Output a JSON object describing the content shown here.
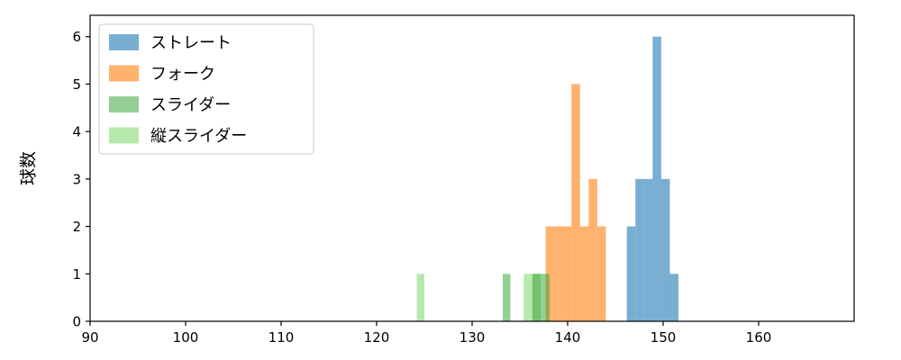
{
  "chart_data": {
    "type": "histogram",
    "title": "",
    "xlabel": "",
    "ylabel": "球数",
    "xlim": [
      90,
      170
    ],
    "ylim": [
      0,
      6.45
    ],
    "xticks": [
      90,
      100,
      110,
      120,
      130,
      140,
      150,
      160
    ],
    "yticks": [
      0,
      1,
      2,
      3,
      4,
      5,
      6
    ],
    "grid": false,
    "axis_color": "#000000",
    "legend": {
      "position": "upper-left",
      "background": "#ffffff",
      "border_color": "#c9c9c9"
    },
    "draw_order": [
      0,
      1,
      3,
      2
    ],
    "series": [
      {
        "name": "ストレート",
        "color": "#1f77b4",
        "alpha": 0.6,
        "bars": [
          [
            146.2,
            147.1,
            2
          ],
          [
            147.1,
            148.0,
            3
          ],
          [
            148.0,
            148.9,
            3
          ],
          [
            148.9,
            149.8,
            6
          ],
          [
            149.8,
            150.7,
            3
          ],
          [
            150.7,
            151.6,
            1
          ]
        ]
      },
      {
        "name": "フォーク",
        "color": "#ff7f0e",
        "alpha": 0.6,
        "bars": [
          [
            137.7,
            138.6,
            2
          ],
          [
            138.6,
            139.5,
            2
          ],
          [
            139.5,
            140.4,
            2
          ],
          [
            140.4,
            141.3,
            5
          ],
          [
            141.3,
            142.2,
            2
          ],
          [
            142.2,
            143.1,
            3
          ],
          [
            143.1,
            144.0,
            2
          ]
        ]
      },
      {
        "name": "スライダー",
        "color": "#2ca02c",
        "alpha": 0.5,
        "bars": [
          [
            133.2,
            134.0,
            1
          ],
          [
            136.3,
            137.2,
            1
          ],
          [
            137.2,
            138.1,
            1
          ]
        ]
      },
      {
        "name": "縦スライダー",
        "color": "#98df8a",
        "alpha": 0.7,
        "bars": [
          [
            124.2,
            125.0,
            1
          ],
          [
            135.4,
            136.3,
            1
          ],
          [
            136.3,
            137.2,
            1
          ]
        ]
      }
    ]
  }
}
